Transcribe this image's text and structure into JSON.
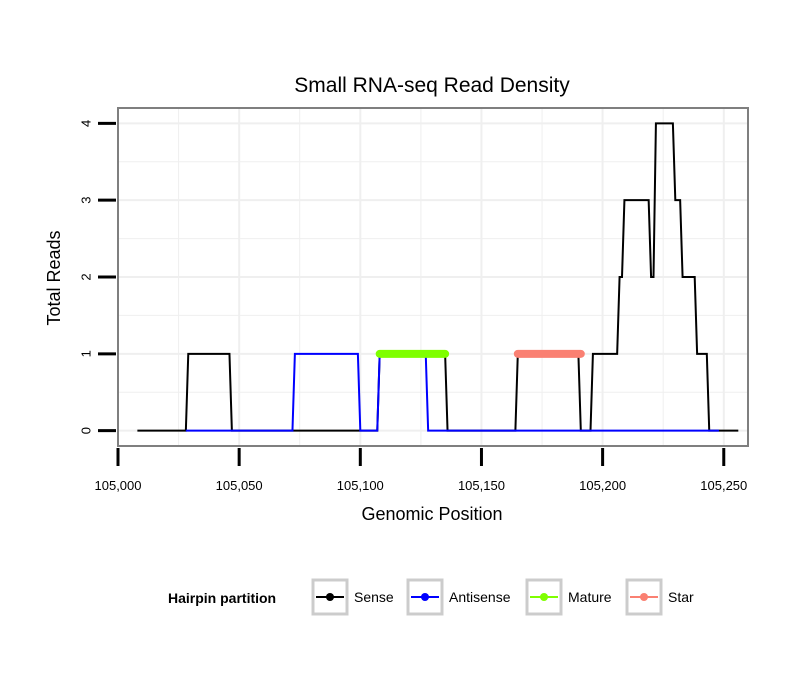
{
  "chart_data": {
    "type": "line",
    "title": "Small RNA-seq Read Density",
    "xlabel": "Genomic Position",
    "ylabel": "Total Reads",
    "xlim": [
      105000,
      105260
    ],
    "ylim": [
      -0.2,
      4.2
    ],
    "x_ticks": [
      105000,
      105050,
      105100,
      105150,
      105200,
      105250
    ],
    "x_tick_labels": [
      "105,000",
      "105,050",
      "105,100",
      "105,150",
      "105,200",
      "105,250"
    ],
    "y_ticks": [
      0,
      1,
      2,
      3,
      4
    ],
    "y_tick_labels": [
      "0",
      "1",
      "2",
      "3",
      "4"
    ],
    "grid": true,
    "series": [
      {
        "name": "Sense",
        "color": "#000000",
        "points": [
          [
            105008,
            0
          ],
          [
            105028,
            0
          ],
          [
            105029,
            1
          ],
          [
            105046,
            1
          ],
          [
            105047,
            0
          ],
          [
            105107,
            0
          ],
          [
            105108,
            1
          ],
          [
            105135,
            1
          ],
          [
            105136,
            0
          ],
          [
            105164,
            0
          ],
          [
            105165,
            1
          ],
          [
            105190,
            1
          ],
          [
            105191,
            0
          ],
          [
            105195,
            0
          ],
          [
            105196,
            1
          ],
          [
            105206,
            1
          ],
          [
            105207,
            2
          ],
          [
            105208,
            2
          ],
          [
            105209,
            3
          ],
          [
            105219,
            3
          ],
          [
            105220,
            2
          ],
          [
            105221,
            2
          ],
          [
            105222,
            4
          ],
          [
            105229,
            4
          ],
          [
            105230,
            3
          ],
          [
            105232,
            3
          ],
          [
            105233,
            2
          ],
          [
            105238,
            2
          ],
          [
            105239,
            1
          ],
          [
            105243,
            1
          ],
          [
            105244,
            0
          ],
          [
            105256,
            0
          ]
        ]
      },
      {
        "name": "Antisense",
        "color": "#0000ff",
        "points": [
          [
            105028,
            0
          ],
          [
            105072,
            0
          ],
          [
            105073,
            1
          ],
          [
            105099,
            1
          ],
          [
            105100,
            0
          ],
          [
            105107,
            0
          ],
          [
            105108,
            1
          ],
          [
            105127,
            1
          ],
          [
            105128,
            0
          ],
          [
            105248,
            0
          ]
        ]
      },
      {
        "name": "Mature",
        "color": "#7fff00",
        "points": [
          [
            105108,
            1
          ],
          [
            105135,
            1
          ]
        ]
      },
      {
        "name": "Star",
        "color": "#fa8072",
        "points": [
          [
            105165,
            1
          ],
          [
            105191,
            1
          ]
        ]
      }
    ],
    "legend": {
      "title": "Hairpin partition",
      "placement": "bottom",
      "entries": [
        "Sense",
        "Antisense",
        "Mature",
        "Star"
      ]
    }
  }
}
